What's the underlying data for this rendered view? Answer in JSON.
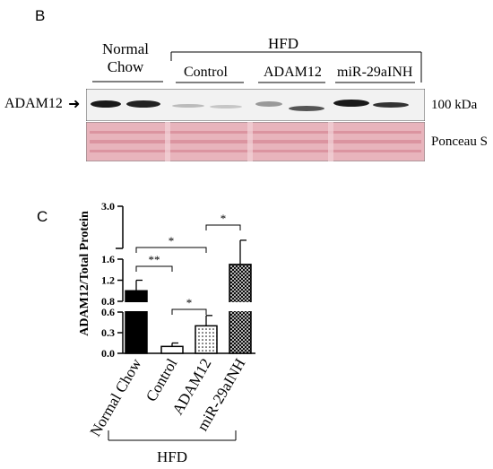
{
  "panel_b": {
    "letter": "B",
    "group_normal_line1": "Normal",
    "group_normal_line2": "Chow",
    "group_hfd": "HFD",
    "lanes": [
      "Control",
      "ADAM12",
      "miR-29aINH"
    ],
    "protein_label": "ADAM12",
    "arrow_glyph": "➜",
    "size_marker": "100 kDa",
    "loading_label": "Ponceau S",
    "colors": {
      "blot_bg": "#f2f2f2",
      "band": "#1a1a1a",
      "ponceau_bg": "#e8b4bc",
      "ponceau_band": "#d98f9c"
    }
  },
  "panel_c": {
    "letter": "C",
    "group_label": "HFD",
    "sig_labels": [
      "**",
      "*",
      "*",
      "*"
    ],
    "chart_data": {
      "type": "bar",
      "categories": [
        "Normal Chow",
        "Control",
        "ADAM12",
        "miR-29aINH"
      ],
      "values": [
        1.0,
        0.1,
        0.4,
        1.5
      ],
      "errors": [
        0.2,
        0.05,
        0.15,
        0.6
      ],
      "ylabel": "ADAM12/Total Protein",
      "yaxis_broken": true,
      "ylim": [
        0,
        3.0
      ],
      "yticks": [
        "0.0",
        "0.3",
        "0.6",
        "0.8",
        "1.2",
        "1.6",
        "3.0"
      ],
      "ytick_values": [
        0.0,
        0.3,
        0.6,
        0.8,
        1.2,
        1.6,
        3.0
      ],
      "fills": [
        "solid",
        "white",
        "dotted",
        "crosshatch"
      ],
      "significance": [
        {
          "from": 0,
          "to": 1,
          "label": "**"
        },
        {
          "from": 1,
          "to": 2,
          "label": "*"
        },
        {
          "from": 0,
          "to": 2,
          "label": "*"
        },
        {
          "from": 2,
          "to": 3,
          "label": "*"
        }
      ]
    }
  }
}
